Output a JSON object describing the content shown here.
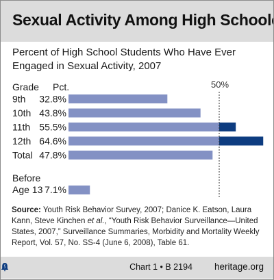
{
  "chart_data": {
    "type": "bar",
    "orientation": "horizontal",
    "title": "Sexual Activity Among High Schoolers",
    "subtitle": "Percent of High School Students Who Have Ever Engaged in Sexual Activity, 2007",
    "column_headers": {
      "grade": "Grade",
      "pct": "Pct."
    },
    "categories": [
      "9th",
      "10th",
      "11th",
      "12th",
      "Total"
    ],
    "values": [
      32.8,
      43.8,
      55.5,
      64.6,
      47.8
    ],
    "value_labels": [
      "32.8%",
      "43.8%",
      "55.5%",
      "64.6%",
      "47.8%"
    ],
    "extra": {
      "label_line1": "Before",
      "label_line2": "Age 13",
      "value": 7.1,
      "value_label": "7.1%"
    },
    "reference_line": {
      "value": 50,
      "label": "50%"
    },
    "colors": {
      "bar": "#8391c4",
      "bar_above_reference": "#0d3c80"
    },
    "xlim": [
      0,
      100
    ]
  },
  "source": {
    "label": "Source:",
    "text_1": " Youth Risk Behavior Survey, 2007; Danice K. Eatson, Laura Kann, Steve Kinchen ",
    "et_al": "et al.",
    "text_2": ", “Youth Risk Behavior Surveillance—United States, 2007,” Surveillance Summaries, Morbidity and Mortality Weekly Report, Vol. 57, No. SS-4 (June 6, 2008), Table 61."
  },
  "footer": {
    "chart_id": "Chart 1 • B 2194",
    "logo_icon": "liberty-bell-icon",
    "site": "heritage.org"
  }
}
